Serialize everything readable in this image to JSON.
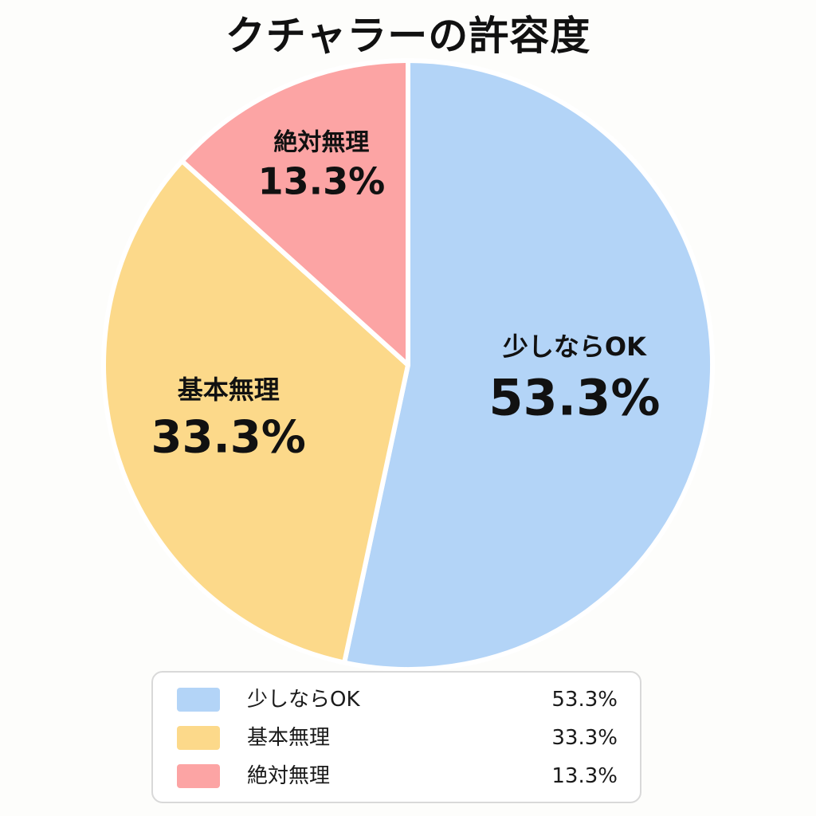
{
  "title": "クチャラーの許容度",
  "chart_data": {
    "type": "pie",
    "title": "クチャラーの許容度",
    "slices": [
      {
        "label": "少しならOK",
        "value": 53.3,
        "display": "53.3%",
        "color": "#b3d4f7"
      },
      {
        "label": "基本無理",
        "value": 33.3,
        "display": "33.3%",
        "color": "#fcd98a"
      },
      {
        "label": "絶対無理",
        "value": 13.3,
        "display": "13.3%",
        "color": "#fca4a4"
      }
    ],
    "start": "12 o'clock",
    "direction": "clockwise",
    "legend_position": "bottom"
  },
  "legend": {
    "items": [
      {
        "label": "少しならOK",
        "value": "53.3%"
      },
      {
        "label": "基本無理",
        "value": "33.3%"
      },
      {
        "label": "絶対無理",
        "value": "13.3%"
      }
    ]
  }
}
